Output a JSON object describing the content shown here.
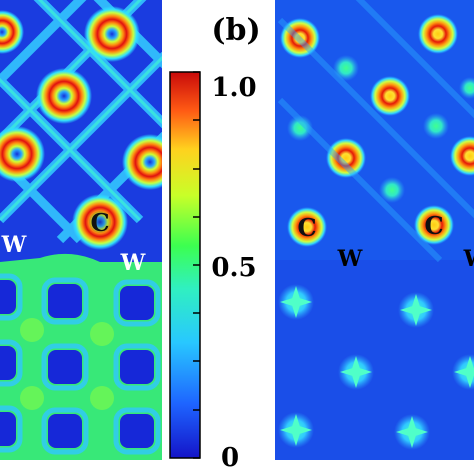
{
  "figure": {
    "panel_b_label": "(b)",
    "colorbar": {
      "tick_labels": [
        "1.0",
        "0.5",
        "0"
      ],
      "tick_values": [
        1.0,
        0.5,
        0.0
      ],
      "min": 0,
      "max": 1,
      "colormap": [
        "#1414c8",
        "#1e78ff",
        "#32e6ff",
        "#3cff64",
        "#c8ff28",
        "#ffd21e",
        "#ff5a14",
        "#c80a0a"
      ]
    },
    "panel_a": {
      "atom_labels": [
        "C",
        "W",
        "W"
      ]
    },
    "panel_b": {
      "atom_labels": [
        "C",
        "C",
        "W",
        "W"
      ]
    }
  }
}
